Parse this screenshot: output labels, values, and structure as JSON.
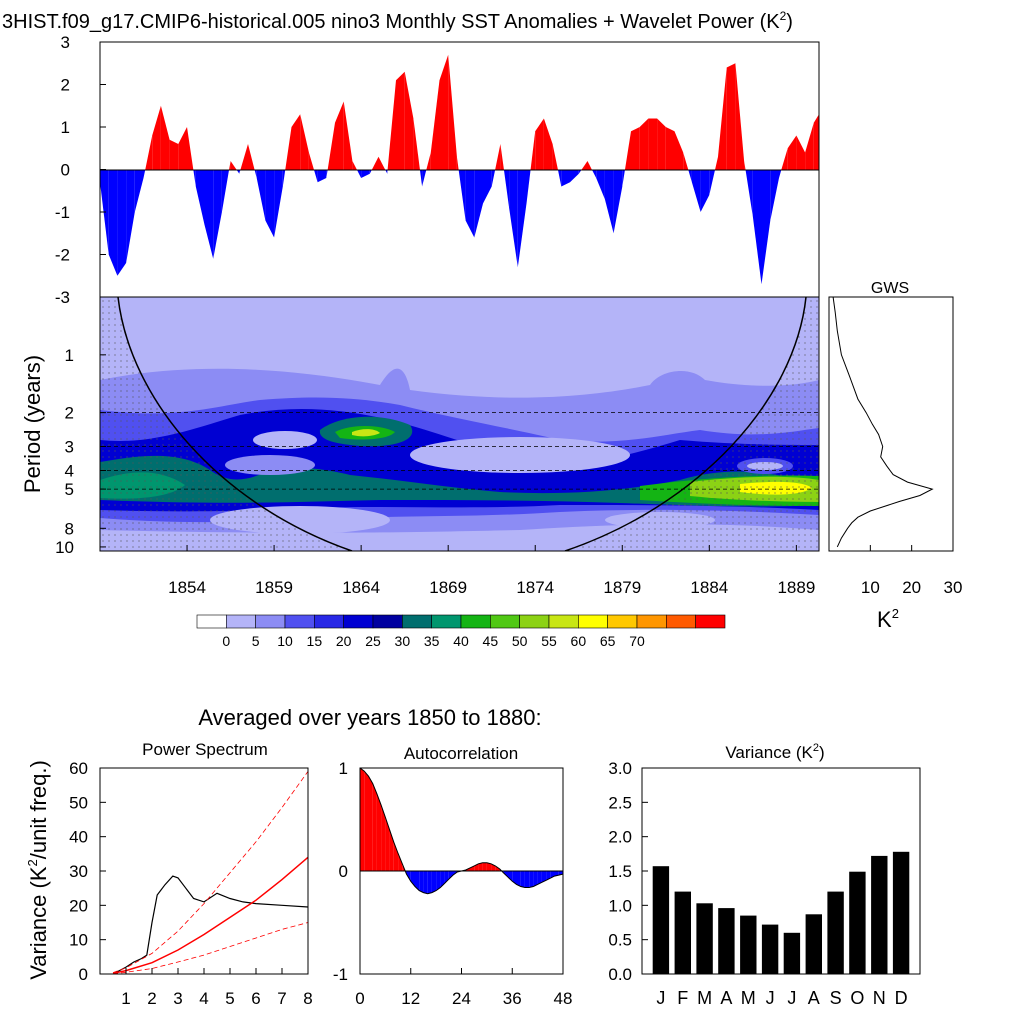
{
  "figure": {
    "title_main": "3HIST.f09_g17.CMIP6-historical.005 nino3 Monthly SST Anomalies + Wavelet Power (K",
    "title_sup": "2",
    "title_close": ")",
    "subtitle": "Averaged over years 1850 to 1880:"
  },
  "colors": {
    "positive": "#ff0000",
    "negative": "#0000ff",
    "bar": "#000000",
    "wavelet_levels": [
      "#ffffff",
      "#b4b4f8",
      "#8c8cf4",
      "#5050f0",
      "#2828e6",
      "#0000d2",
      "#0000a0",
      "#006e6e",
      "#00966e",
      "#14b414",
      "#50c814",
      "#8cd214",
      "#c8e614",
      "#ffff00",
      "#ffc800",
      "#ff9600",
      "#ff5a00",
      "#ff0000"
    ]
  },
  "chart_data": [
    {
      "id": "timeseries",
      "type": "area",
      "title": "Monthly SST Anomalies",
      "ylabel": "",
      "xlim": [
        1849.0,
        1890.3
      ],
      "ylim": [
        -3,
        3
      ],
      "yticks": [
        -3,
        -2,
        -1,
        0,
        1,
        2,
        3
      ],
      "x": [
        1849.0,
        1849.5,
        1850.0,
        1850.5,
        1851.0,
        1851.5,
        1852.0,
        1852.5,
        1853.0,
        1853.5,
        1854.0,
        1854.5,
        1855.0,
        1855.5,
        1856.0,
        1856.5,
        1857.0,
        1857.5,
        1858.0,
        1858.5,
        1859.0,
        1859.5,
        1860.0,
        1860.5,
        1861.0,
        1861.5,
        1862.0,
        1862.5,
        1863.0,
        1863.5,
        1864.0,
        1864.5,
        1865.0,
        1865.5,
        1866.0,
        1866.5,
        1867.0,
        1867.5,
        1868.0,
        1868.5,
        1869.0,
        1869.5,
        1870.0,
        1870.5,
        1871.0,
        1871.5,
        1872.0,
        1872.5,
        1873.0,
        1873.5,
        1874.0,
        1874.5,
        1875.0,
        1875.5,
        1876.0,
        1876.5,
        1877.0,
        1877.5,
        1878.0,
        1878.5,
        1879.0,
        1879.5,
        1880.0,
        1880.5,
        1881.0,
        1881.5,
        1882.0,
        1882.5,
        1883.0,
        1883.5,
        1884.0,
        1884.5,
        1885.0,
        1885.5,
        1886.0,
        1886.5,
        1887.0,
        1887.5,
        1888.0,
        1888.5,
        1889.0,
        1889.5,
        1890.0,
        1890.3
      ],
      "y": [
        -0.3,
        -2.0,
        -2.5,
        -2.2,
        -1.0,
        -0.2,
        0.8,
        1.5,
        0.7,
        0.6,
        1.0,
        -0.4,
        -1.3,
        -2.1,
        -1.0,
        0.2,
        -0.1,
        0.6,
        -0.2,
        -1.2,
        -1.6,
        -0.4,
        1.0,
        1.3,
        0.4,
        -0.3,
        -0.2,
        1.1,
        1.6,
        0.2,
        -0.2,
        -0.1,
        0.3,
        -0.1,
        2.1,
        2.3,
        1.2,
        -0.4,
        0.4,
        2.1,
        2.7,
        0.3,
        -1.2,
        -1.6,
        -0.8,
        -0.4,
        0.6,
        -0.9,
        -2.3,
        -0.8,
        0.9,
        1.2,
        0.6,
        -0.4,
        -0.3,
        -0.1,
        0.2,
        -0.2,
        -0.7,
        -1.5,
        -0.4,
        0.9,
        1.0,
        1.2,
        1.2,
        1.0,
        0.9,
        0.4,
        -0.3,
        -1.0,
        -0.6,
        0.3,
        2.4,
        2.5,
        0.2,
        -1.1,
        -2.7,
        -1.2,
        -0.2,
        0.5,
        0.8,
        0.4,
        1.1,
        1.3
      ],
      "xticks": [
        1854,
        1859,
        1864,
        1869,
        1874,
        1879,
        1884,
        1889
      ]
    },
    {
      "id": "wavelet",
      "type": "heatmap",
      "ylabel": "Period (years)",
      "ylim": [
        0.5,
        10
      ],
      "yticks": [
        1,
        2,
        3,
        4,
        5,
        8,
        10
      ],
      "xticks": [
        1854,
        1859,
        1864,
        1869,
        1874,
        1879,
        1884,
        1889
      ],
      "xlim": [
        1849.0,
        1890.3
      ],
      "dashed_periods": [
        2,
        3,
        4,
        5
      ],
      "colorbar_labels": [
        "0",
        "5",
        "10",
        "15",
        "20",
        "25",
        "30",
        "35",
        "40",
        "45",
        "50",
        "55",
        "60",
        "65",
        "70"
      ]
    },
    {
      "id": "gws",
      "type": "line",
      "title": "GWS",
      "xlabel": "K",
      "xlabel_sup": "2",
      "xlim": [
        0,
        30
      ],
      "xticks": [
        10,
        20,
        30
      ],
      "period": [
        0.5,
        0.6,
        0.75,
        1.0,
        1.3,
        1.7,
        2.0,
        2.3,
        2.6,
        3.0,
        3.4,
        3.8,
        4.2,
        4.6,
        5.0,
        5.4,
        5.8,
        6.5,
        7.0,
        7.5,
        8.0,
        9.0,
        10.0
      ],
      "power": [
        1.0,
        1.5,
        2.0,
        3.0,
        5.0,
        7.0,
        9.0,
        10.5,
        12.0,
        13.0,
        12.5,
        14.0,
        15.5,
        19.0,
        25.0,
        22.0,
        17.0,
        10.0,
        7.0,
        5.5,
        4.5,
        3.0,
        2.0
      ]
    },
    {
      "id": "power_spectrum",
      "type": "line",
      "title": "Power Spectrum",
      "ylabel": "Variance (K",
      "ylabel_sup": "2",
      "ylabel_rest": "/unit freq.)",
      "xlim": [
        0,
        8
      ],
      "ylim": [
        0,
        60
      ],
      "xticks": [
        1,
        2,
        3,
        4,
        5,
        6,
        7,
        8
      ],
      "yticks": [
        0,
        10,
        20,
        30,
        40,
        50,
        60
      ],
      "series": [
        {
          "name": "spectrum",
          "x": [
            0.5,
            1.0,
            1.3,
            1.6,
            1.8,
            2.0,
            2.2,
            2.5,
            2.8,
            3.0,
            3.3,
            3.6,
            4.0,
            4.5,
            5.0,
            5.5,
            6.0,
            7.0,
            8.0
          ],
          "y": [
            0.0,
            2.0,
            3.5,
            4.5,
            5.5,
            15.0,
            23.0,
            26.0,
            28.5,
            28.0,
            25.0,
            22.0,
            21.0,
            23.5,
            22.0,
            21.0,
            20.5,
            20.0,
            19.5
          ]
        },
        {
          "name": "red-noise",
          "x": [
            0.5,
            1,
            2,
            3,
            4,
            5,
            6,
            7,
            8
          ],
          "y": [
            0.2,
            1.0,
            3.3,
            7.0,
            11.5,
            16.5,
            21.5,
            27.5,
            34.0
          ]
        },
        {
          "name": "upper-bound",
          "x": [
            0.5,
            1,
            2,
            3,
            4,
            5,
            6,
            7,
            8
          ],
          "y": [
            0.4,
            1.8,
            6.0,
            12.5,
            20.5,
            29.5,
            38.5,
            48.5,
            59.0
          ]
        },
        {
          "name": "lower-bound",
          "x": [
            0.5,
            1,
            2,
            3,
            4,
            5,
            6,
            7,
            8
          ],
          "y": [
            0.1,
            0.5,
            1.6,
            3.5,
            5.5,
            8.0,
            10.5,
            13.0,
            15.0
          ]
        }
      ]
    },
    {
      "id": "autocorrelation",
      "type": "area",
      "title": "Autocorrelation",
      "xlim": [
        0,
        48
      ],
      "ylim": [
        -1,
        1
      ],
      "xticks": [
        0,
        12,
        24,
        36,
        48
      ],
      "yticks": [
        -1,
        0,
        1
      ],
      "x": [
        0,
        1,
        2,
        3,
        4,
        5,
        6,
        7,
        8,
        9,
        10,
        11,
        12,
        13,
        14,
        15,
        16,
        17,
        18,
        19,
        20,
        21,
        22,
        23,
        24,
        25,
        26,
        27,
        28,
        29,
        30,
        31,
        32,
        33,
        34,
        35,
        36,
        37,
        38,
        39,
        40,
        41,
        42,
        43,
        44,
        45,
        46,
        47,
        48
      ],
      "y": [
        1.0,
        0.97,
        0.92,
        0.85,
        0.75,
        0.64,
        0.52,
        0.4,
        0.28,
        0.17,
        0.07,
        -0.03,
        -0.1,
        -0.15,
        -0.19,
        -0.21,
        -0.22,
        -0.21,
        -0.19,
        -0.16,
        -0.12,
        -0.08,
        -0.04,
        -0.01,
        0.0,
        0.01,
        0.03,
        0.05,
        0.07,
        0.08,
        0.08,
        0.07,
        0.05,
        0.02,
        -0.02,
        -0.06,
        -0.1,
        -0.13,
        -0.15,
        -0.16,
        -0.16,
        -0.15,
        -0.13,
        -0.11,
        -0.09,
        -0.07,
        -0.05,
        -0.04,
        -0.03
      ]
    },
    {
      "id": "variance",
      "type": "bar",
      "title": "Variance (K",
      "title_sup": "2",
      "title_close": ")",
      "categories": [
        "J",
        "F",
        "M",
        "A",
        "M",
        "J",
        "J",
        "A",
        "S",
        "O",
        "N",
        "D"
      ],
      "values": [
        1.57,
        1.2,
        1.03,
        0.96,
        0.85,
        0.72,
        0.6,
        0.87,
        1.2,
        1.49,
        1.72,
        1.78
      ],
      "ylim": [
        0,
        3
      ],
      "yticks": [
        "0.0",
        "0.5",
        "1.0",
        "1.5",
        "2.0",
        "2.5",
        "3.0"
      ]
    }
  ]
}
